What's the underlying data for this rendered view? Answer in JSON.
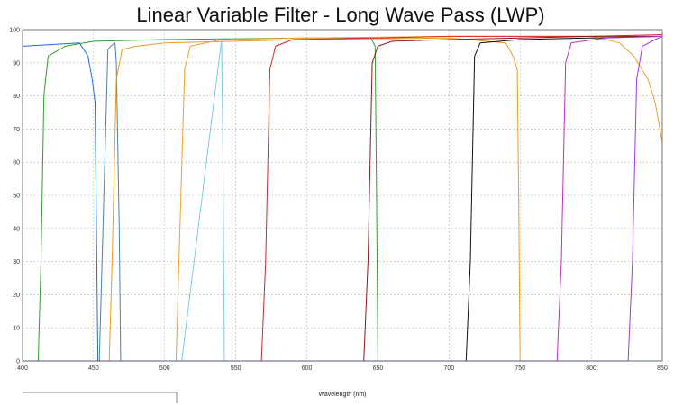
{
  "chart_data": {
    "type": "line",
    "title": "Linear Variable Filter - Long Wave Pass (LWP)",
    "xlabel": "Wavelength (nm)",
    "ylabel": "",
    "xlim": [
      400,
      850
    ],
    "ylim": [
      0,
      100
    ],
    "x_ticks": [
      400,
      450,
      500,
      550,
      600,
      650,
      700,
      750,
      800,
      850
    ],
    "y_ticks": [
      0,
      10,
      20,
      30,
      40,
      50,
      60,
      70,
      80,
      90,
      100
    ],
    "grid": true,
    "series": [
      {
        "name": "blue",
        "color": "#1f6fd1",
        "points": [
          [
            400,
            95
          ],
          [
            440,
            96
          ],
          [
            446,
            92
          ],
          [
            449,
            85
          ],
          [
            451,
            78
          ],
          [
            452,
            40
          ],
          [
            453,
            0
          ],
          [
            850,
            0
          ]
        ]
      },
      {
        "name": "green",
        "color": "#2ca02c",
        "points": [
          [
            400,
            0
          ],
          [
            411,
            0
          ],
          [
            413,
            30
          ],
          [
            415,
            80
          ],
          [
            418,
            92
          ],
          [
            430,
            95
          ],
          [
            450,
            96.5
          ],
          [
            500,
            97
          ],
          [
            600,
            97.5
          ],
          [
            645,
            97.5
          ],
          [
            648,
            95
          ],
          [
            649,
            50
          ],
          [
            650,
            0
          ],
          [
            850,
            0
          ]
        ]
      },
      {
        "name": "steelblue",
        "color": "#4a7fb5",
        "points": [
          [
            400,
            0
          ],
          [
            451,
            0
          ],
          [
            454,
            0
          ],
          [
            460,
            94
          ],
          [
            462,
            95
          ],
          [
            465,
            96
          ],
          [
            466,
            90
          ],
          [
            468,
            40
          ],
          [
            469,
            0
          ],
          [
            850,
            0
          ]
        ]
      },
      {
        "name": "orange",
        "color": "#ef9b20",
        "points": [
          [
            400,
            0
          ],
          [
            461,
            0
          ],
          [
            463,
            30
          ],
          [
            466,
            85
          ],
          [
            470,
            94
          ],
          [
            480,
            95
          ],
          [
            500,
            96
          ],
          [
            600,
            97
          ],
          [
            700,
            97.5
          ],
          [
            740,
            96
          ],
          [
            745,
            92
          ],
          [
            748,
            88
          ],
          [
            749,
            50
          ],
          [
            750,
            0
          ],
          [
            850,
            0
          ]
        ]
      },
      {
        "name": "orange2",
        "color": "#f0a030",
        "points": [
          [
            400,
            0
          ],
          [
            508,
            0
          ],
          [
            510,
            30
          ],
          [
            514,
            88
          ],
          [
            518,
            95
          ],
          [
            540,
            97
          ],
          [
            600,
            97.5
          ],
          [
            700,
            98
          ],
          [
            800,
            98
          ],
          [
            820,
            96
          ],
          [
            830,
            92
          ],
          [
            840,
            85
          ],
          [
            845,
            78
          ],
          [
            850,
            66
          ]
        ]
      },
      {
        "name": "lightblue",
        "color": "#7fcbe0",
        "points": [
          [
            400,
            0
          ],
          [
            509,
            0
          ],
          [
            512,
            0
          ],
          [
            540,
            97
          ],
          [
            541,
            60
          ],
          [
            542,
            0
          ],
          [
            850,
            0
          ]
        ]
      },
      {
        "name": "red",
        "color": "#d62728",
        "points": [
          [
            400,
            0
          ],
          [
            568,
            0
          ],
          [
            571,
            30
          ],
          [
            574,
            88
          ],
          [
            578,
            95
          ],
          [
            590,
            97
          ],
          [
            650,
            97.5
          ],
          [
            700,
            98
          ],
          [
            800,
            98
          ],
          [
            850,
            98.5
          ]
        ]
      },
      {
        "name": "darkred",
        "color": "#8c1a1a",
        "points": [
          [
            400,
            0
          ],
          [
            640,
            0
          ],
          [
            643,
            30
          ],
          [
            646,
            90
          ],
          [
            650,
            95
          ],
          [
            660,
            96.5
          ],
          [
            700,
            97
          ],
          [
            750,
            97.5
          ],
          [
            800,
            98
          ],
          [
            850,
            98
          ]
        ]
      },
      {
        "name": "black",
        "color": "#111111",
        "points": [
          [
            400,
            0
          ],
          [
            712,
            0
          ],
          [
            715,
            30
          ],
          [
            718,
            92
          ],
          [
            722,
            96
          ],
          [
            750,
            97
          ],
          [
            800,
            97.5
          ],
          [
            850,
            98
          ]
        ]
      },
      {
        "name": "magenta",
        "color": "#c030c0",
        "points": [
          [
            400,
            0
          ],
          [
            776,
            0
          ],
          [
            779,
            30
          ],
          [
            782,
            90
          ],
          [
            786,
            96
          ],
          [
            810,
            97.5
          ],
          [
            850,
            98
          ]
        ]
      },
      {
        "name": "violet",
        "color": "#9a3ee0",
        "points": [
          [
            400,
            0
          ],
          [
            826,
            0
          ],
          [
            829,
            30
          ],
          [
            832,
            85
          ],
          [
            836,
            95
          ],
          [
            845,
            97
          ],
          [
            850,
            98
          ]
        ]
      }
    ]
  }
}
